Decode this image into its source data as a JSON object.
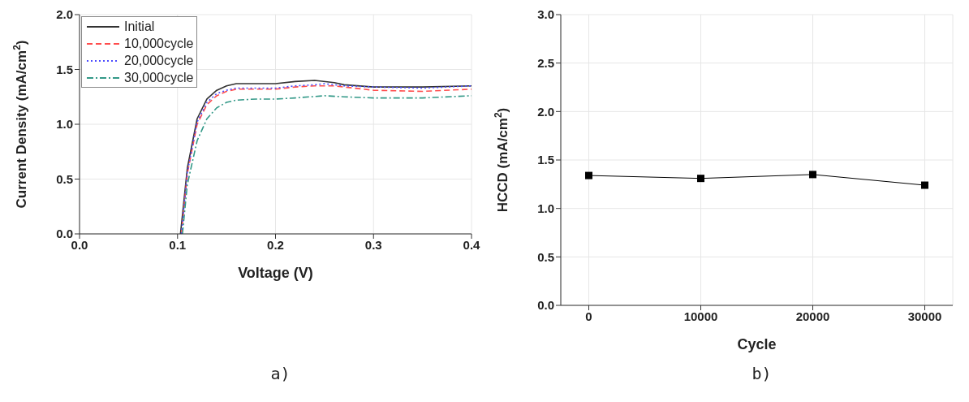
{
  "chart_data": [
    {
      "type": "line",
      "xlabel": "Voltage (V)",
      "ylabel": "Current Density (mA/cm$^{2}$)",
      "xlim": [
        0,
        0.4
      ],
      "xticks": [
        {
          "value": 0,
          "label": "0.0"
        },
        0.1,
        0.2,
        0.3,
        0.4
      ],
      "ylim": [
        0,
        2
      ],
      "yticks": [
        {
          "value": 0,
          "label": "0.0"
        },
        0.5,
        {
          "value": 1,
          "label": "1.0"
        },
        1.5,
        {
          "value": 2,
          "label": "2.0"
        }
      ],
      "grid": true,
      "legend": "top left",
      "marker": "none",
      "annotations": [
        "a)"
      ],
      "series": [
        {
          "name": "Initial",
          "color": "#333333",
          "line_style": "solid",
          "x": [
            0.103,
            0.11,
            0.12,
            0.13,
            0.14,
            0.15,
            0.16,
            0.18,
            0.2,
            0.22,
            0.24,
            0.26,
            0.27,
            0.3,
            0.35,
            0.4
          ],
          "values": [
            0,
            0.6,
            1.05,
            1.23,
            1.31,
            1.35,
            1.37,
            1.37,
            1.37,
            1.39,
            1.4,
            1.38,
            1.36,
            1.34,
            1.34,
            1.35
          ]
        },
        {
          "name": "10,000cycle",
          "color": "#ff4d4d",
          "line_style": "dashed",
          "x": [
            0.104,
            0.11,
            0.12,
            0.13,
            0.14,
            0.15,
            0.16,
            0.18,
            0.2,
            0.22,
            0.24,
            0.26,
            0.27,
            0.3,
            0.35,
            0.4
          ],
          "values": [
            0,
            0.55,
            1.0,
            1.18,
            1.26,
            1.3,
            1.32,
            1.32,
            1.32,
            1.34,
            1.35,
            1.35,
            1.34,
            1.31,
            1.3,
            1.32
          ]
        },
        {
          "name": "20,000cycle",
          "color": "#4d4dff",
          "line_style": "dotted",
          "x": [
            0.104,
            0.11,
            0.12,
            0.13,
            0.14,
            0.15,
            0.16,
            0.18,
            0.2,
            0.22,
            0.24,
            0.25,
            0.27,
            0.3,
            0.35,
            0.4
          ],
          "values": [
            0,
            0.56,
            1.02,
            1.2,
            1.28,
            1.31,
            1.33,
            1.33,
            1.33,
            1.35,
            1.36,
            1.37,
            1.35,
            1.34,
            1.33,
            1.35
          ]
        },
        {
          "name": "30,000cycle",
          "color": "#339988",
          "line_style": "dashdot",
          "x": [
            0.105,
            0.11,
            0.12,
            0.13,
            0.14,
            0.15,
            0.16,
            0.18,
            0.2,
            0.22,
            0.25,
            0.27,
            0.3,
            0.35,
            0.4
          ],
          "values": [
            0,
            0.45,
            0.85,
            1.05,
            1.15,
            1.2,
            1.22,
            1.23,
            1.23,
            1.24,
            1.26,
            1.25,
            1.24,
            1.24,
            1.26
          ]
        }
      ]
    },
    {
      "type": "line",
      "xlabel": "Cycle",
      "ylabel": "HCCD (mA/cm$^{2}$)",
      "xlim": [
        -2500,
        32500
      ],
      "xticks": [
        0,
        10000,
        20000,
        30000
      ],
      "ylim": [
        0,
        3
      ],
      "yticks": [
        {
          "value": 0,
          "label": "0.0"
        },
        0.5,
        {
          "value": 1,
          "label": "1.0"
        },
        1.5,
        {
          "value": 2,
          "label": "2.0"
        },
        2.5,
        {
          "value": 3,
          "label": "3.0"
        }
      ],
      "grid": true,
      "marker": "square",
      "annotations": [
        "b)"
      ],
      "series": [
        {
          "color": "#000000",
          "x": [
            0,
            10000,
            20000,
            30000
          ],
          "values": [
            1.34,
            1.31,
            1.35,
            1.24
          ]
        }
      ]
    }
  ]
}
